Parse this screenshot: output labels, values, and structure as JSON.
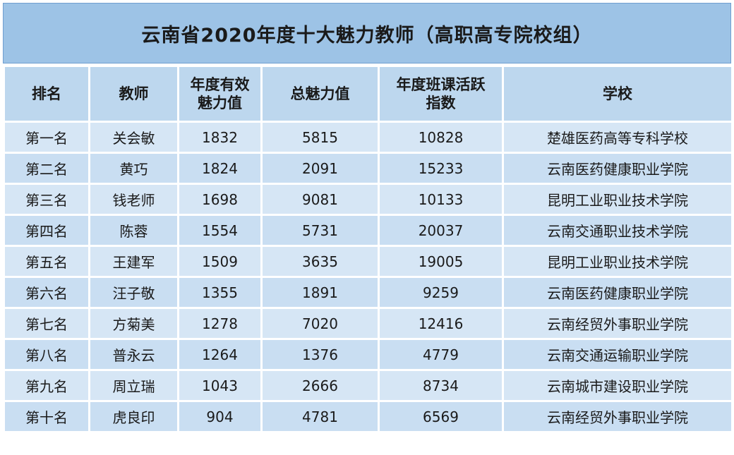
{
  "title": "云南省2020年度十大魅力教师（高职高专院校组）",
  "columns": [
    "排名",
    "教师",
    "年度有效魅力值",
    "总魅力值",
    "年度班课活跃指数",
    "学校"
  ],
  "rows": [
    [
      "第一名",
      "关会敏",
      "1832",
      "5815",
      "10828",
      "楚雄医药高等专科学校"
    ],
    [
      "第二名",
      "黄巧",
      "1824",
      "2091",
      "15233",
      "云南医药健康职业学院"
    ],
    [
      "第三名",
      "钱老师",
      "1698",
      "9081",
      "10133",
      "昆明工业职业技术学院"
    ],
    [
      "第四名",
      "陈蓉",
      "1554",
      "5731",
      "20037",
      "云南交通职业技术学院"
    ],
    [
      "第五名",
      "王建军",
      "1509",
      "3635",
      "19005",
      "昆明工业职业技术学院"
    ],
    [
      "第六名",
      "汪子敬",
      "1355",
      "1891",
      "9259",
      "云南医药健康职业学院"
    ],
    [
      "第七名",
      "方菊美",
      "1278",
      "7020",
      "12416",
      "云南经贸外事职业学院"
    ],
    [
      "第八名",
      "普永云",
      "1264",
      "1376",
      "4779",
      "云南交通运输职业学院"
    ],
    [
      "第九名",
      "周立瑞",
      "1043",
      "2666",
      "8734",
      "云南城市建设职业学院"
    ],
    [
      "第十名",
      "虎良印",
      "904",
      "4781",
      "6569",
      "云南经贸外事职业学院"
    ]
  ],
  "colors": {
    "title_bg": "#9dc3e6",
    "header_bg": "#bdd7ee",
    "row_bg": "#d6e6f5"
  }
}
